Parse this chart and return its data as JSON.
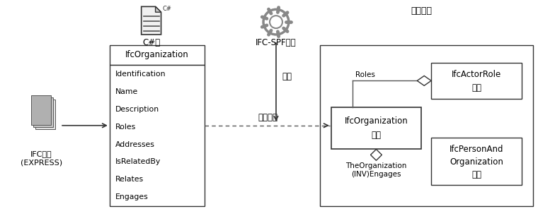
{
  "bg_color": "#ffffff",
  "ifc_express_label": "IFC大纲\n(EXPRESS)",
  "cs_class_label": "C#类",
  "ifc_spf_label": "IFC-SPF数据",
  "memory_label": "内存对象",
  "class_box_title": "IfcOrganization",
  "class_box_attrs": [
    "Identification",
    "Name",
    "Description",
    "Roles",
    "Addresses",
    "IsRelatedBy",
    "Relates",
    "Engages"
  ],
  "parse_label": "解析",
  "generate_label": "生成实例",
  "roles_label": "Roles",
  "engages_label": "TheOrganization\n(INV)Engages",
  "ifc_org_line1": "IfcOrganization",
  "ifc_org_line2": "实例",
  "actor_line1": "IfcActorRole",
  "actor_line2": "实例",
  "person_line1": "IfcPersonAnd",
  "person_line2": "Organization",
  "person_line3": "实例"
}
